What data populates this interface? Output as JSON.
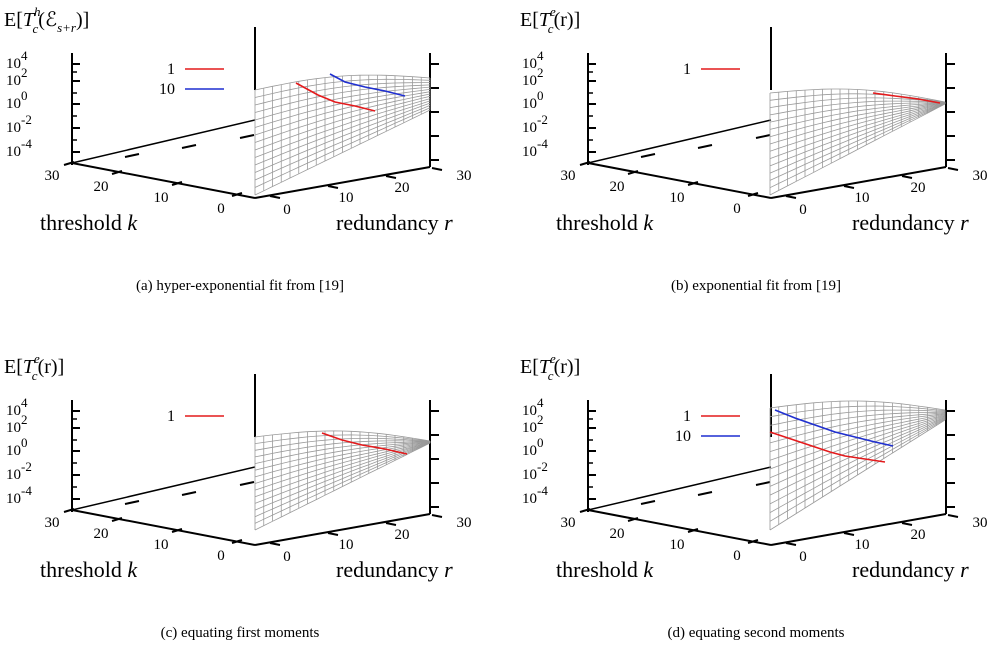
{
  "figure": {
    "panels": [
      {
        "caption": "(a) hyper-exponential fit from [19]",
        "title": {
          "base": "E[",
          "var": "T",
          "sup": "h",
          "sub": "c",
          "arg": "(ℰ",
          "argsub": "s+r",
          "tail": ")]"
        },
        "chart_data": {
          "type": "surface",
          "zlabel_scale": "log",
          "z_ticks": [
            "10",
            "10",
            "10",
            "10",
            "10"
          ],
          "z_tick_exponents": [
            "4",
            "2",
            "0",
            "-2",
            "-4"
          ],
          "x_axis": {
            "label": "threshold",
            "var": "k",
            "ticks": [
              "30",
              "20",
              "10",
              "0"
            ],
            "range": [
              0,
              30
            ]
          },
          "y_axis": {
            "label": "redundancy",
            "var": "r",
            "ticks": [
              "0",
              "10",
              "20",
              "30"
            ],
            "range": [
              0,
              30
            ]
          },
          "z_range_log10": [
            -5,
            4
          ],
          "series": [
            {
              "name": "1",
              "color": "#e41a1c"
            },
            {
              "name": "10",
              "color": "#1f2fd0"
            }
          ]
        }
      },
      {
        "caption": "(b) exponential fit from [19]",
        "title": {
          "base": "E[",
          "var": "T",
          "sup": "e",
          "sub": "c",
          "arg": "(r)",
          "argsub": "",
          "tail": "]"
        },
        "chart_data": {
          "type": "surface",
          "zlabel_scale": "log",
          "z_ticks": [
            "10",
            "10",
            "10",
            "10",
            "10"
          ],
          "z_tick_exponents": [
            "4",
            "2",
            "0",
            "-2",
            "-4"
          ],
          "x_axis": {
            "label": "threshold",
            "var": "k",
            "ticks": [
              "30",
              "20",
              "10",
              "0"
            ],
            "range": [
              0,
              30
            ]
          },
          "y_axis": {
            "label": "redundancy",
            "var": "r",
            "ticks": [
              "0",
              "10",
              "20",
              "30"
            ],
            "range": [
              0,
              30
            ]
          },
          "z_range_log10": [
            -5,
            4
          ],
          "series": [
            {
              "name": "1",
              "color": "#e41a1c"
            }
          ]
        }
      },
      {
        "caption": "(c) equating first moments",
        "title": {
          "base": "E[",
          "var": "T",
          "sup": "e",
          "sub": "c",
          "arg": "(r)",
          "argsub": "",
          "tail": "]"
        },
        "chart_data": {
          "type": "surface",
          "zlabel_scale": "log",
          "z_ticks": [
            "10",
            "10",
            "10",
            "10",
            "10"
          ],
          "z_tick_exponents": [
            "4",
            "2",
            "0",
            "-2",
            "-4"
          ],
          "x_axis": {
            "label": "threshold",
            "var": "k",
            "ticks": [
              "30",
              "20",
              "10",
              "0"
            ],
            "range": [
              0,
              30
            ]
          },
          "y_axis": {
            "label": "redundancy",
            "var": "r",
            "ticks": [
              "0",
              "10",
              "20",
              "30"
            ],
            "range": [
              0,
              30
            ]
          },
          "z_range_log10": [
            -5,
            4
          ],
          "series": [
            {
              "name": "1",
              "color": "#e41a1c"
            }
          ]
        }
      },
      {
        "caption": "(d) equating second moments",
        "title": {
          "base": "E[",
          "var": "T",
          "sup": "e",
          "sub": "c",
          "arg": "(r)",
          "argsub": "",
          "tail": "]"
        },
        "chart_data": {
          "type": "surface",
          "zlabel_scale": "log",
          "z_ticks": [
            "10",
            "10",
            "10",
            "10",
            "10"
          ],
          "z_tick_exponents": [
            "4",
            "2",
            "0",
            "-2",
            "-4"
          ],
          "x_axis": {
            "label": "threshold",
            "var": "k",
            "ticks": [
              "30",
              "20",
              "10",
              "0"
            ],
            "range": [
              0,
              30
            ]
          },
          "y_axis": {
            "label": "redundancy",
            "var": "r",
            "ticks": [
              "0",
              "10",
              "20",
              "30"
            ],
            "range": [
              0,
              30
            ]
          },
          "z_range_log10": [
            -5,
            4
          ],
          "series": [
            {
              "name": "1",
              "color": "#e41a1c"
            },
            {
              "name": "10",
              "color": "#1f2fd0"
            }
          ]
        }
      }
    ],
    "colors": {
      "axis": "#000000",
      "mesh": "#9a9a9a"
    }
  }
}
